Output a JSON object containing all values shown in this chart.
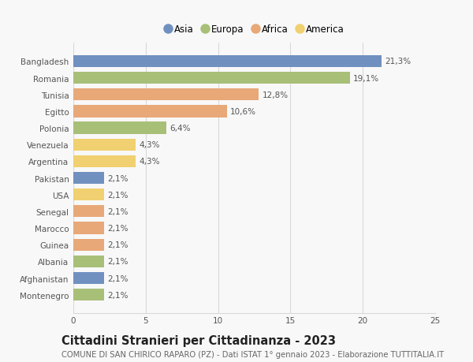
{
  "countries": [
    "Bangladesh",
    "Romania",
    "Tunisia",
    "Egitto",
    "Polonia",
    "Venezuela",
    "Argentina",
    "Pakistan",
    "USA",
    "Senegal",
    "Marocco",
    "Guinea",
    "Albania",
    "Afghanistan",
    "Montenegro"
  ],
  "values": [
    21.3,
    19.1,
    12.8,
    10.6,
    6.4,
    4.3,
    4.3,
    2.1,
    2.1,
    2.1,
    2.1,
    2.1,
    2.1,
    2.1,
    2.1
  ],
  "labels": [
    "21,3%",
    "19,1%",
    "12,8%",
    "10,6%",
    "6,4%",
    "4,3%",
    "4,3%",
    "2,1%",
    "2,1%",
    "2,1%",
    "2,1%",
    "2,1%",
    "2,1%",
    "2,1%",
    "2,1%"
  ],
  "continents": [
    "Asia",
    "Europa",
    "Africa",
    "Africa",
    "Europa",
    "America",
    "America",
    "Asia",
    "America",
    "Africa",
    "Africa",
    "Africa",
    "Europa",
    "Asia",
    "Europa"
  ],
  "colors": {
    "Asia": "#7090c0",
    "Europa": "#a8bf78",
    "Africa": "#e8a878",
    "America": "#f0d070"
  },
  "legend_order": [
    "Asia",
    "Europa",
    "Africa",
    "America"
  ],
  "xlim": [
    0,
    25
  ],
  "xticks": [
    0,
    5,
    10,
    15,
    20,
    25
  ],
  "title": "Cittadini Stranieri per Cittadinanza - 2023",
  "subtitle": "COMUNE DI SAN CHIRICO RAPARO (PZ) - Dati ISTAT 1° gennaio 2023 - Elaborazione TUTTITALIA.IT",
  "bg_color": "#f8f8f8",
  "bar_height": 0.72,
  "grid_color": "#d8d8d8",
  "label_fontsize": 7.5,
  "tick_fontsize": 7.5,
  "title_fontsize": 10.5,
  "subtitle_fontsize": 7.2,
  "legend_fontsize": 8.5
}
